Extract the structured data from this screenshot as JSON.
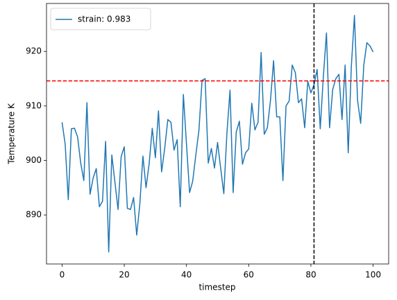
{
  "chart_data": {
    "type": "line",
    "xlabel": "timestep",
    "ylabel": "Temperature K",
    "x": [
      0,
      1,
      2,
      3,
      4,
      5,
      6,
      7,
      8,
      9,
      10,
      11,
      12,
      13,
      14,
      15,
      16,
      17,
      18,
      19,
      20,
      21,
      22,
      23,
      24,
      25,
      26,
      27,
      28,
      29,
      30,
      31,
      32,
      33,
      34,
      35,
      36,
      37,
      38,
      39,
      40,
      41,
      42,
      43,
      44,
      45,
      46,
      47,
      48,
      49,
      50,
      51,
      52,
      53,
      54,
      55,
      56,
      57,
      58,
      59,
      60,
      61,
      62,
      63,
      64,
      65,
      66,
      67,
      68,
      69,
      70,
      71,
      72,
      73,
      74,
      75,
      76,
      77,
      78,
      79,
      80,
      81,
      82,
      83,
      84,
      85,
      86,
      87,
      88,
      89,
      90,
      91,
      92,
      93,
      94,
      95,
      96,
      97,
      98,
      99,
      100
    ],
    "series": [
      {
        "name": "strain: 0.983",
        "color": "#1f77b4",
        "values": [
          907,
          903,
          892.8,
          905.8,
          905.9,
          904.3,
          899.5,
          896.3,
          910.6,
          893.8,
          896.8,
          898.5,
          891.5,
          892.5,
          903.5,
          883.2,
          901,
          896,
          891,
          900.7,
          902.5,
          891.2,
          891,
          893.2,
          886.3,
          892,
          900.8,
          895,
          899.4,
          905.9,
          900.5,
          909.1,
          897.9,
          902.2,
          907.5,
          907,
          901.9,
          903.8,
          891.5,
          912.1,
          903,
          894.1,
          896.2,
          901,
          905.5,
          914.7,
          915,
          899.5,
          902.2,
          898.6,
          903.3,
          898.5,
          893.9,
          905,
          912.9,
          894.1,
          905.2,
          907.2,
          899.3,
          901.4,
          902.1,
          910.5,
          905.6,
          907,
          919.8,
          904.8,
          906,
          911,
          918.3,
          908,
          908,
          896.3,
          910,
          910.9,
          917.5,
          916.1,
          910.6,
          911.3,
          906,
          914.5,
          912.4,
          913.9,
          916.7,
          905.8,
          915.4,
          923.4,
          906,
          913,
          915,
          915.8,
          907.5,
          917.5,
          901.4,
          917.3,
          926.6,
          911,
          906.8,
          917.5,
          921.6,
          921,
          919.9
        ]
      }
    ],
    "hlines": [
      {
        "y": 914.6,
        "color": "#ff0000"
      }
    ],
    "vlines": [
      {
        "x": 81,
        "color": "#000000"
      }
    ],
    "xlim": [
      -5,
      105
    ],
    "xticks": [
      0,
      20,
      40,
      60,
      80,
      100
    ],
    "ylim": [
      881.0,
      928.8
    ],
    "yticks": [
      890,
      900,
      910,
      920
    ],
    "legend": "upper left",
    "grid": false
  }
}
